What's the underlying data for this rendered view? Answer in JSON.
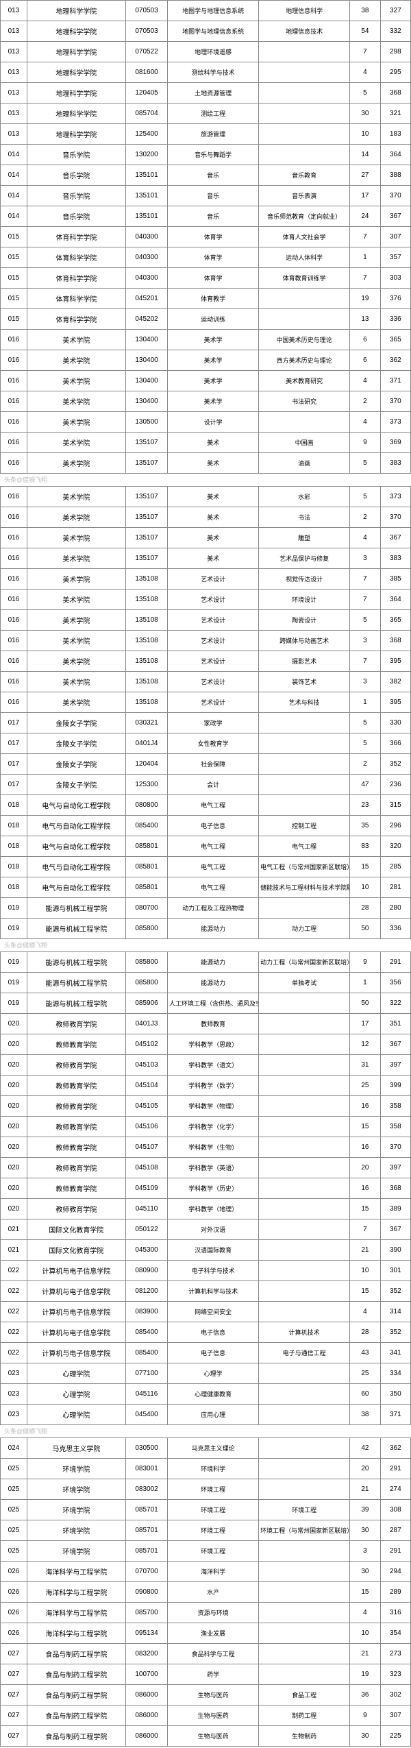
{
  "watermark": "头条@健顺飞翔",
  "sections": [
    {
      "rows": [
        [
          "013",
          "地理科学学院",
          "070503",
          "地图学与地理信息系统",
          "地理信息科学",
          "38",
          "327"
        ],
        [
          "013",
          "地理科学学院",
          "070503",
          "地图学与地理信息系统",
          "地理信息技术",
          "54",
          "332"
        ],
        [
          "013",
          "地理科学学院",
          "070522",
          "地理环境遥感",
          "",
          "7",
          "298"
        ],
        [
          "013",
          "地理科学学院",
          "081600",
          "测绘科学与技术",
          "",
          "4",
          "295"
        ],
        [
          "013",
          "地理科学学院",
          "120405",
          "土地资源管理",
          "",
          "5",
          "368"
        ],
        [
          "013",
          "地理科学学院",
          "085704",
          "测绘工程",
          "",
          "30",
          "321"
        ],
        [
          "013",
          "地理科学学院",
          "125400",
          "旅游管理",
          "",
          "10",
          "183"
        ],
        [
          "014",
          "音乐学院",
          "130200",
          "音乐与舞蹈学",
          "",
          "14",
          "364"
        ],
        [
          "014",
          "音乐学院",
          "135101",
          "音乐",
          "音乐教育",
          "27",
          "388"
        ],
        [
          "014",
          "音乐学院",
          "135101",
          "音乐",
          "音乐表演",
          "17",
          "370"
        ],
        [
          "014",
          "音乐学院",
          "135101",
          "音乐",
          "音乐师范教育（定向就业）",
          "24",
          "367"
        ],
        [
          "015",
          "体育科学学院",
          "040300",
          "体育学",
          "体育人文社会学",
          "7",
          "307"
        ],
        [
          "015",
          "体育科学学院",
          "040300",
          "体育学",
          "运动人体科学",
          "1",
          "357"
        ],
        [
          "015",
          "体育科学学院",
          "040300",
          "体育学",
          "体育教育训练学",
          "7",
          "303"
        ],
        [
          "015",
          "体育科学学院",
          "045201",
          "体育教学",
          "",
          "19",
          "376"
        ],
        [
          "015",
          "体育科学学院",
          "045202",
          "运动训练",
          "",
          "13",
          "336"
        ],
        [
          "016",
          "美术学院",
          "130400",
          "美术学",
          "中国美术历史与理论",
          "6",
          "365"
        ],
        [
          "016",
          "美术学院",
          "130400",
          "美术学",
          "西方美术历史与理论",
          "6",
          "362"
        ],
        [
          "016",
          "美术学院",
          "130400",
          "美术学",
          "美术教育研究",
          "4",
          "371"
        ],
        [
          "016",
          "美术学院",
          "130400",
          "美术学",
          "书法研究",
          "2",
          "370"
        ],
        [
          "016",
          "美术学院",
          "130500",
          "设计学",
          "",
          "4",
          "373"
        ],
        [
          "016",
          "美术学院",
          "135107",
          "美术",
          "中国画",
          "9",
          "369"
        ],
        [
          "016",
          "美术学院",
          "135107",
          "美术",
          "油画",
          "5",
          "383"
        ]
      ]
    },
    {
      "rows": [
        [
          "016",
          "美术学院",
          "135107",
          "美术",
          "水彩",
          "5",
          "373"
        ],
        [
          "016",
          "美术学院",
          "135107",
          "美术",
          "书法",
          "2",
          "370"
        ],
        [
          "016",
          "美术学院",
          "135107",
          "美术",
          "雕塑",
          "4",
          "367"
        ],
        [
          "016",
          "美术学院",
          "135107",
          "美术",
          "艺术品保护与修复",
          "3",
          "383"
        ],
        [
          "016",
          "美术学院",
          "135108",
          "艺术设计",
          "视觉传达设计",
          "7",
          "385"
        ],
        [
          "016",
          "美术学院",
          "135108",
          "艺术设计",
          "环境设计",
          "7",
          "364"
        ],
        [
          "016",
          "美术学院",
          "135108",
          "艺术设计",
          "陶瓷设计",
          "5",
          "365"
        ],
        [
          "016",
          "美术学院",
          "135108",
          "艺术设计",
          "跨媒体与动画艺术",
          "3",
          "368"
        ],
        [
          "016",
          "美术学院",
          "135108",
          "艺术设计",
          "摄影艺术",
          "7",
          "395"
        ],
        [
          "016",
          "美术学院",
          "135108",
          "艺术设计",
          "装饰艺术",
          "3",
          "382"
        ],
        [
          "016",
          "美术学院",
          "135108",
          "艺术设计",
          "艺术与科技",
          "1",
          "395"
        ],
        [
          "017",
          "金陵女子学院",
          "030321",
          "家政学",
          "",
          "5",
          "330"
        ],
        [
          "017",
          "金陵女子学院",
          "0401J4",
          "女性教育学",
          "",
          "5",
          "366"
        ],
        [
          "017",
          "金陵女子学院",
          "120404",
          "社会保障",
          "",
          "2",
          "352"
        ],
        [
          "017",
          "金陵女子学院",
          "125300",
          "会计",
          "",
          "47",
          "236"
        ],
        [
          "018",
          "电气与自动化工程学院",
          "080800",
          "电气工程",
          "",
          "23",
          "315"
        ],
        [
          "018",
          "电气与自动化工程学院",
          "085400",
          "电子信息",
          "控制工程",
          "35",
          "296"
        ],
        [
          "018",
          "电气与自动化工程学院",
          "085801",
          "电气工程",
          "电气工程",
          "83",
          "320"
        ],
        [
          "018",
          "电气与自动化工程学院",
          "085801",
          "电气工程",
          "电气工程（与常州国家新区联培）",
          "15",
          "285"
        ],
        [
          "018",
          "电气与自动化工程学院",
          "085801",
          "电气工程",
          "储能技术与工程材料与技术学院联培",
          "10",
          "281"
        ],
        [
          "019",
          "能源与机械工程学院",
          "080700",
          "动力工程及工程热物理",
          "",
          "28",
          "280"
        ],
        [
          "019",
          "能源与机械工程学院",
          "085800",
          "能源动力",
          "动力工程",
          "50",
          "336"
        ]
      ]
    },
    {
      "rows": [
        [
          "019",
          "能源与机械工程学院",
          "085800",
          "能源动力",
          "动力工程（与常州国家新区联培）",
          "9",
          "291"
        ],
        [
          "019",
          "能源与机械工程学院",
          "085800",
          "能源动力",
          "单独考试",
          "1",
          "356"
        ],
        [
          "019",
          "能源与机械工程学院",
          "085906",
          "人工环境工程（含供热、通风及空调等）",
          "",
          "50",
          "322"
        ],
        [
          "020",
          "教师教育学院",
          "0401J3",
          "教师教育",
          "",
          "17",
          "351"
        ],
        [
          "020",
          "教师教育学院",
          "045102",
          "学科教学（思政）",
          "",
          "12",
          "367"
        ],
        [
          "020",
          "教师教育学院",
          "045103",
          "学科教学（语文）",
          "",
          "31",
          "397"
        ],
        [
          "020",
          "教师教育学院",
          "045104",
          "学科教学（数学）",
          "",
          "25",
          "399"
        ],
        [
          "020",
          "教师教育学院",
          "045105",
          "学科教学（物理）",
          "",
          "16",
          "358"
        ],
        [
          "020",
          "教师教育学院",
          "045106",
          "学科教学（化学）",
          "",
          "15",
          "358"
        ],
        [
          "020",
          "教师教育学院",
          "045107",
          "学科教学（生物）",
          "",
          "16",
          "370"
        ],
        [
          "020",
          "教师教育学院",
          "045108",
          "学科教学（英语）",
          "",
          "20",
          "397"
        ],
        [
          "020",
          "教师教育学院",
          "045109",
          "学科教学（历史）",
          "",
          "16",
          "368"
        ],
        [
          "020",
          "教师教育学院",
          "045110",
          "学科教学（地理）",
          "",
          "15",
          "389"
        ],
        [
          "021",
          "国际文化教育学院",
          "050122",
          "对外汉语",
          "",
          "7",
          "367"
        ],
        [
          "021",
          "国际文化教育学院",
          "045300",
          "汉语国际教育",
          "",
          "21",
          "390"
        ],
        [
          "022",
          "计算机与电子信息学院",
          "080900",
          "电子科学与技术",
          "",
          "10",
          "301"
        ],
        [
          "022",
          "计算机与电子信息学院",
          "081200",
          "计算机科学与技术",
          "",
          "15",
          "352"
        ],
        [
          "022",
          "计算机与电子信息学院",
          "083900",
          "网络空间安全",
          "",
          "4",
          "314"
        ],
        [
          "022",
          "计算机与电子信息学院",
          "085400",
          "电子信息",
          "计算机技术",
          "28",
          "352"
        ],
        [
          "022",
          "计算机与电子信息学院",
          "085400",
          "电子信息",
          "电子与通信工程",
          "43",
          "341"
        ],
        [
          "023",
          "心理学院",
          "077100",
          "心理学",
          "",
          "25",
          "334"
        ],
        [
          "023",
          "心理学院",
          "045116",
          "心理健康教育",
          "",
          "60",
          "350"
        ],
        [
          "023",
          "心理学院",
          "045400",
          "应用心理",
          "",
          "38",
          "371"
        ]
      ]
    },
    {
      "rows": [
        [
          "024",
          "马克思主义学院",
          "030500",
          "马克思主义理论",
          "",
          "42",
          "362"
        ],
        [
          "025",
          "环境学院",
          "083001",
          "环境科学",
          "",
          "20",
          "291"
        ],
        [
          "025",
          "环境学院",
          "083002",
          "环境工程",
          "",
          "21",
          "274"
        ],
        [
          "025",
          "环境学院",
          "085701",
          "环境工程",
          "环境工程",
          "39",
          "308"
        ],
        [
          "025",
          "环境学院",
          "085701",
          "环境工程",
          "环境工程（与常州国家新区联培）",
          "30",
          "287"
        ],
        [
          "025",
          "环境学院",
          "085701",
          "环境工程",
          "",
          "3",
          "291"
        ],
        [
          "026",
          "海洋科学与工程学院",
          "070700",
          "海洋科学",
          "",
          "30",
          "294"
        ],
        [
          "026",
          "海洋科学与工程学院",
          "090800",
          "水产",
          "",
          "15",
          "289"
        ],
        [
          "026",
          "海洋科学与工程学院",
          "085700",
          "资源与环境",
          "",
          "4",
          "316"
        ],
        [
          "026",
          "海洋科学与工程学院",
          "095134",
          "渔业发展",
          "",
          "10",
          "354"
        ],
        [
          "027",
          "食品与制药工程学院",
          "083200",
          "食品科学与工程",
          "",
          "21",
          "273"
        ],
        [
          "027",
          "食品与制药工程学院",
          "100700",
          "药学",
          "",
          "19",
          "323"
        ],
        [
          "027",
          "食品与制药工程学院",
          "086000",
          "生物与医药",
          "食品工程",
          "36",
          "302"
        ],
        [
          "027",
          "食品与制药工程学院",
          "086000",
          "生物与医药",
          "制药工程",
          "9",
          "307"
        ],
        [
          "027",
          "食品与制药工程学院",
          "086000",
          "生物与医药",
          "生物制药",
          "30",
          "225"
        ]
      ]
    }
  ]
}
